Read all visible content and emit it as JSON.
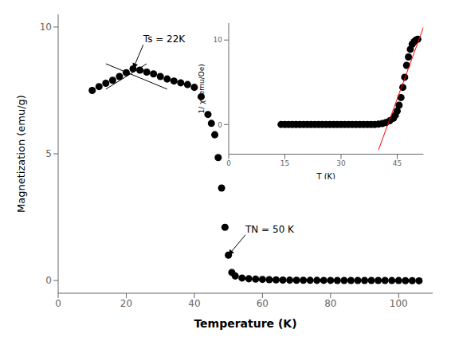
{
  "chart_data": [
    {
      "type": "scatter",
      "xlabel": "Temperature (K)",
      "ylabel": "Magnetization (emu/g)",
      "xlim": [
        0,
        110
      ],
      "ylim": [
        -0.5,
        10.5
      ],
      "xticks": [
        0,
        20,
        40,
        60,
        80,
        100
      ],
      "yticks": [
        0,
        5,
        10
      ],
      "series": [
        {
          "type": "scatter",
          "marker": "circle",
          "color": "black",
          "x": [
            10,
            12,
            14,
            16,
            18,
            20,
            22,
            24,
            26,
            28,
            30,
            32,
            34,
            36,
            38,
            40,
            42,
            44,
            45,
            46,
            47,
            48,
            49,
            50,
            51,
            52,
            54,
            56,
            58,
            60,
            62,
            64,
            66,
            68,
            70,
            72,
            74,
            76,
            78,
            80,
            82,
            84,
            86,
            88,
            90,
            92,
            94,
            96,
            98,
            100,
            102,
            104,
            106
          ],
          "values": [
            7.5,
            7.65,
            7.78,
            7.9,
            8.05,
            8.2,
            8.35,
            8.3,
            8.22,
            8.15,
            8.05,
            7.95,
            7.87,
            7.8,
            7.73,
            7.62,
            7.25,
            6.55,
            6.2,
            5.75,
            4.85,
            3.65,
            2.1,
            1.0,
            0.32,
            0.18,
            0.1,
            0.07,
            0.055,
            0.045,
            0.035,
            0.025,
            0.02,
            0.015,
            0.012,
            0.01,
            0.008,
            0.007,
            0.006,
            0.005,
            0.004,
            0.003,
            0.003,
            0.002,
            0.002,
            0.001,
            0.001,
            0.001,
            0.0,
            0.0,
            -0.005,
            -0.005,
            -0.01
          ]
        },
        {
          "type": "line",
          "color": "black",
          "x": [
            14,
            26
          ],
          "values": [
            7.55,
            8.55
          ]
        },
        {
          "type": "line",
          "color": "black",
          "x": [
            14,
            32
          ],
          "values": [
            8.55,
            7.55
          ]
        }
      ],
      "annotations": [
        {
          "text": "Ts = 22K",
          "x": 22,
          "y": 8.35,
          "text_x": 25,
          "text_y": 9.3
        },
        {
          "text": "TN = 50 K",
          "x": 50,
          "y": 1.0,
          "text_x": 55,
          "text_y": 1.8
        }
      ]
    },
    {
      "type": "scatter",
      "xlabel": "T (K)",
      "ylabel": "1/ χ (emu/Oe)",
      "xlim": [
        0,
        52
      ],
      "ylim": [
        -3.5,
        12
      ],
      "xticks": [
        0,
        15,
        30,
        45
      ],
      "yticks": [
        0,
        10
      ],
      "series": [
        {
          "type": "scatter",
          "marker": "circle",
          "color": "black",
          "x": [
            14,
            15,
            16,
            17,
            18,
            19,
            20,
            21,
            22,
            23,
            24,
            25,
            26,
            27,
            28,
            29,
            30,
            31,
            32,
            33,
            34,
            35,
            36,
            37,
            38,
            39,
            40,
            41,
            42,
            43,
            44,
            44.5,
            45,
            45.5,
            46,
            46.5,
            47,
            47.5,
            48,
            48.5,
            49,
            49.5,
            50,
            50.5
          ],
          "values": [
            0.02,
            0.01,
            0.01,
            0.01,
            0.01,
            0.01,
            0.01,
            0.01,
            0.01,
            0.01,
            0.01,
            0.01,
            0.01,
            0.01,
            0.01,
            0.01,
            0.01,
            0.01,
            0.01,
            0.01,
            0.01,
            0.01,
            0.01,
            0.01,
            0.01,
            0.01,
            0.05,
            0.12,
            0.25,
            0.45,
            0.75,
            1.1,
            1.6,
            2.3,
            3.2,
            4.4,
            5.6,
            7.0,
            8.0,
            8.9,
            9.5,
            9.8,
            10.0,
            10.1
          ]
        },
        {
          "type": "line",
          "color": "red",
          "x": [
            40,
            52
          ],
          "values": [
            -3.0,
            11.5
          ]
        }
      ]
    }
  ]
}
